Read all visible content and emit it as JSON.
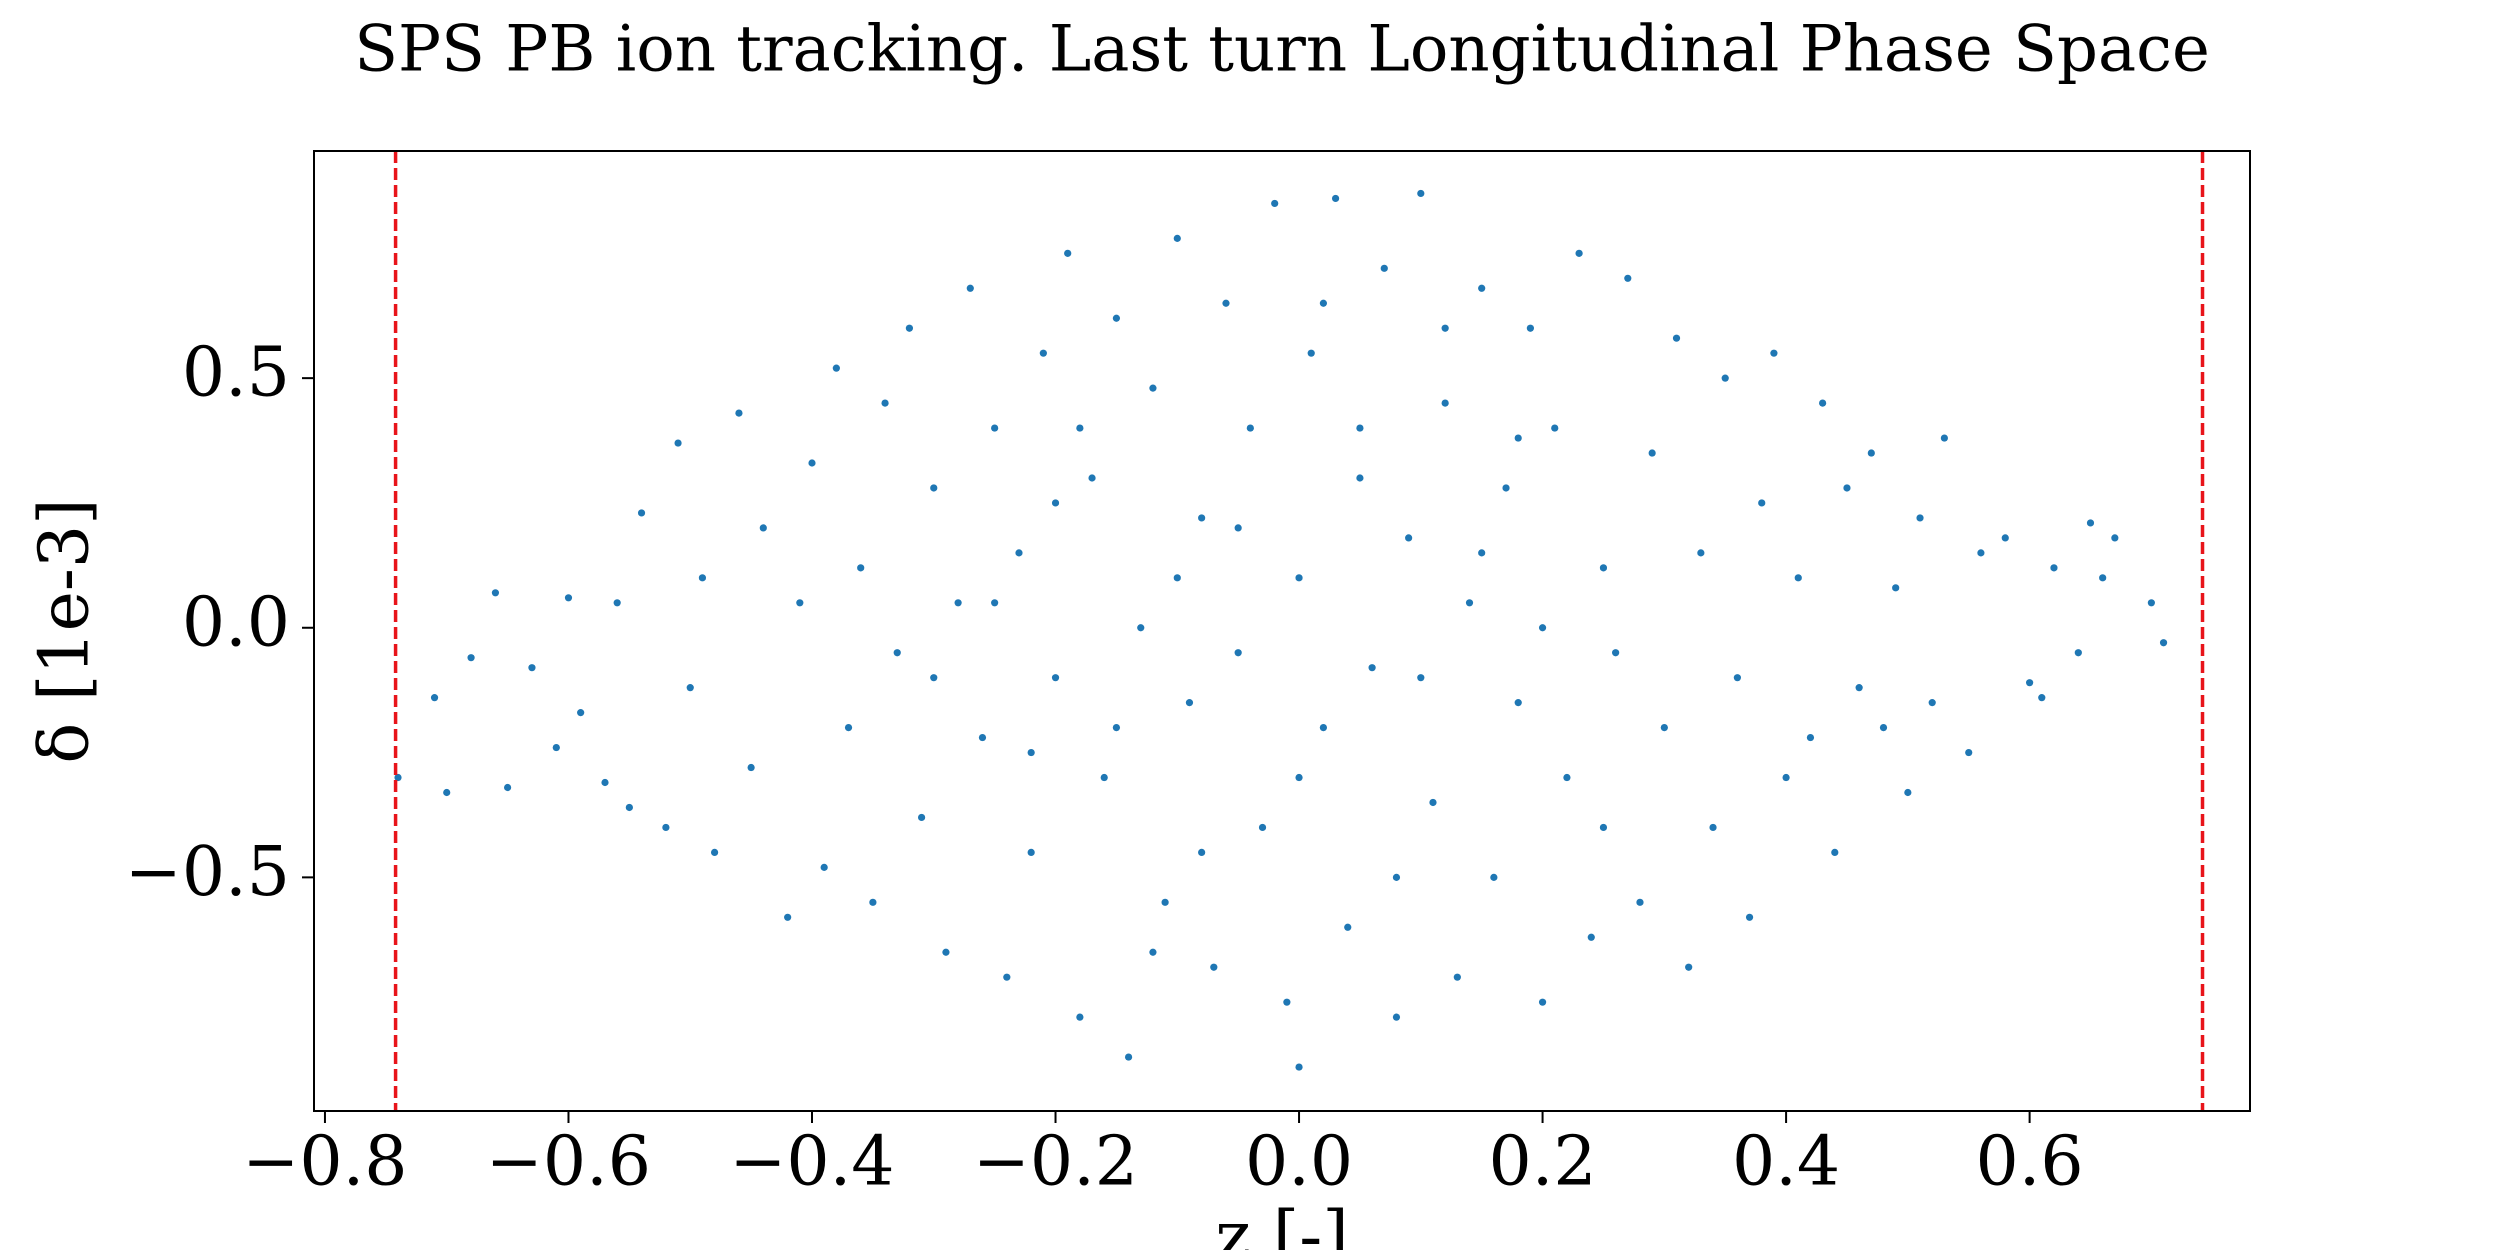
{
  "chart_data": {
    "type": "scatter",
    "title": "SPS PB ion tracking. Last turn Longitudinal Phase Space",
    "x_label": "z [-]",
    "y_label": "δ [1e-3]",
    "xlim": [
      -0.809,
      0.781
    ],
    "ylim": [
      -0.968,
      0.955
    ],
    "xticks": [
      {
        "value": -0.8,
        "label": "−0.8"
      },
      {
        "value": -0.6,
        "label": "−0.6"
      },
      {
        "value": -0.4,
        "label": "−0.4"
      },
      {
        "value": -0.2,
        "label": "−0.2"
      },
      {
        "value": 0,
        "label": "0.0"
      },
      0.2,
      0.4,
      0.6
    ],
    "yticks": [
      {
        "value": -0.5,
        "label": "−0.5"
      },
      {
        "value": 0,
        "label": "0.0"
      },
      0.5
    ],
    "vlines": [
      -0.742,
      0.742
    ],
    "vline_color": "#e8141a",
    "series": [
      {
        "color": "#1f77b4",
        "x": [
          -0.74,
          -0.71,
          -0.7,
          -0.68,
          -0.66,
          -0.65,
          -0.63,
          -0.61,
          -0.6,
          -0.59,
          -0.57,
          -0.56,
          -0.55,
          -0.54,
          -0.52,
          -0.51,
          -0.5,
          -0.49,
          -0.48,
          -0.46,
          -0.45,
          -0.44,
          -0.42,
          -0.41,
          -0.4,
          -0.39,
          -0.38,
          -0.37,
          -0.36,
          -0.35,
          -0.34,
          -0.33,
          -0.32,
          -0.31,
          -0.3,
          -0.29,
          -0.28,
          -0.27,
          -0.26,
          -0.25,
          -0.24,
          -0.23,
          -0.22,
          -0.21,
          -0.2,
          -0.19,
          -0.18,
          -0.17,
          -0.16,
          -0.15,
          -0.14,
          -0.13,
          -0.12,
          -0.11,
          -0.1,
          -0.09,
          -0.08,
          -0.07,
          -0.06,
          -0.05,
          -0.04,
          -0.03,
          -0.02,
          -0.01,
          0.0,
          0.0,
          0.01,
          0.02,
          0.03,
          0.04,
          0.05,
          0.06,
          0.07,
          0.08,
          0.09,
          0.1,
          0.11,
          0.12,
          0.13,
          0.14,
          0.15,
          0.16,
          0.17,
          0.18,
          0.19,
          0.2,
          0.21,
          0.22,
          0.23,
          0.24,
          0.25,
          0.26,
          0.27,
          0.28,
          0.29,
          0.3,
          0.31,
          0.32,
          0.33,
          0.34,
          0.35,
          0.36,
          0.37,
          0.38,
          0.39,
          0.4,
          0.41,
          0.42,
          0.43,
          0.44,
          0.45,
          0.46,
          0.47,
          0.48,
          0.49,
          0.5,
          0.51,
          0.52,
          0.53,
          0.55,
          0.56,
          0.58,
          0.6,
          0.61,
          0.62,
          0.64,
          0.65,
          0.66,
          0.67,
          0.7,
          0.71,
          -0.3,
          -0.25,
          -0.2,
          -0.15,
          -0.1,
          -0.05,
          0.0,
          0.05,
          0.1,
          0.15,
          0.2,
          0.25,
          -0.18,
          -0.08,
          0.08,
          0.12,
          -0.22,
          0.18,
          0.02,
          -0.12
        ],
        "y": [
          -0.3,
          -0.14,
          -0.33,
          -0.06,
          0.07,
          -0.32,
          -0.08,
          -0.24,
          0.06,
          -0.17,
          -0.31,
          0.05,
          -0.36,
          0.23,
          -0.4,
          0.37,
          -0.12,
          0.1,
          -0.45,
          0.43,
          -0.28,
          0.2,
          -0.58,
          0.05,
          0.33,
          -0.48,
          0.52,
          -0.2,
          0.12,
          -0.55,
          0.45,
          -0.05,
          0.6,
          -0.38,
          0.28,
          -0.65,
          0.05,
          0.68,
          -0.22,
          0.4,
          -0.7,
          0.15,
          -0.45,
          0.55,
          -0.1,
          0.75,
          -0.78,
          0.3,
          -0.3,
          0.62,
          -0.86,
          0.0,
          0.48,
          -0.55,
          0.78,
          -0.15,
          0.22,
          -0.68,
          0.65,
          -0.05,
          0.4,
          -0.4,
          0.85,
          -0.75,
          0.1,
          -0.88,
          0.55,
          -0.2,
          0.86,
          -0.6,
          0.3,
          -0.08,
          0.72,
          -0.78,
          0.18,
          0.87,
          -0.35,
          0.45,
          -0.7,
          0.05,
          0.68,
          -0.5,
          0.28,
          -0.15,
          0.6,
          -0.75,
          0.4,
          -0.3,
          0.75,
          -0.62,
          0.12,
          -0.05,
          0.7,
          -0.55,
          0.35,
          -0.2,
          0.58,
          -0.68,
          0.15,
          -0.4,
          0.5,
          -0.1,
          -0.58,
          0.25,
          0.55,
          -0.3,
          0.1,
          -0.22,
          0.45,
          -0.45,
          0.28,
          -0.12,
          0.35,
          -0.2,
          0.08,
          -0.33,
          0.22,
          -0.15,
          0.38,
          -0.25,
          0.15,
          0.18,
          -0.11,
          -0.14,
          0.12,
          -0.05,
          0.21,
          0.1,
          0.18,
          0.05,
          -0.03,
          -0.1,
          0.05,
          0.25,
          -0.2,
          0.1,
          0.2,
          -0.3,
          0.4,
          -0.1,
          0.15,
          0.0,
          -0.4,
          0.4,
          -0.45,
          -0.5,
          0.6,
          -0.25,
          0.38,
          0.65,
          -0.65
        ]
      }
    ]
  }
}
